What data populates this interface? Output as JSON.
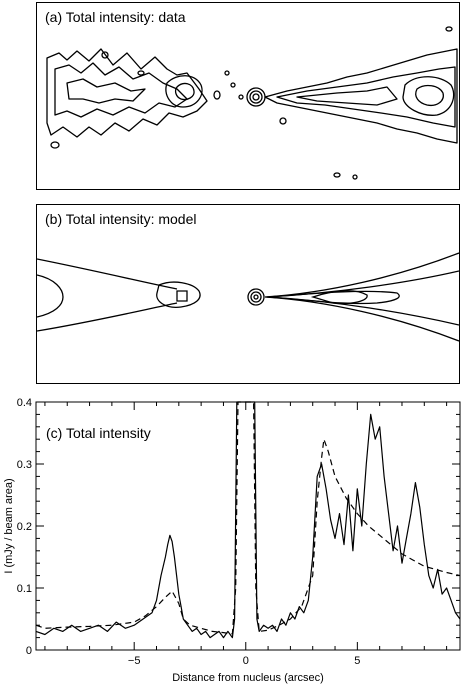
{
  "panels": {
    "a": {
      "title": "(a) Total intensity: data"
    },
    "b": {
      "title": "(b) Total intensity: model"
    }
  },
  "chart_data": {
    "type": "line",
    "title": "(c) Total intensity",
    "xlabel": "Distance from nucleus (arcsec)",
    "ylabel": "I (mJy / beam area)",
    "xlim": [
      -9.4,
      9.6
    ],
    "ylim": [
      0,
      0.4
    ],
    "xticks": [
      -5,
      0,
      5
    ],
    "xtick_labels": [
      "−5",
      "0",
      "5"
    ],
    "yticks": [
      0,
      0.1,
      0.2,
      0.3,
      0.4
    ],
    "ytick_labels": [
      "0",
      "0.1",
      "0.2",
      "0.3",
      "0.4"
    ],
    "series": [
      {
        "style": "solid",
        "x": [
          -9.4,
          -9.0,
          -8.6,
          -8.2,
          -7.8,
          -7.4,
          -7.0,
          -6.6,
          -6.2,
          -5.8,
          -5.4,
          -5.0,
          -4.6,
          -4.2,
          -4.0,
          -3.8,
          -3.6,
          -3.5,
          -3.4,
          -3.3,
          -3.2,
          -3.1,
          -3.0,
          -2.9,
          -2.8,
          -2.6,
          -2.4,
          -2.2,
          -2.0,
          -1.8,
          -1.6,
          -1.4,
          -1.2,
          -1.0,
          -0.8,
          -0.6,
          -0.5,
          -0.4,
          -0.35,
          -0.3,
          0.3,
          0.35,
          0.4,
          0.5,
          0.6,
          0.8,
          1.0,
          1.2,
          1.4,
          1.6,
          1.8,
          2.0,
          2.2,
          2.4,
          2.6,
          2.8,
          3.0,
          3.2,
          3.4,
          3.6,
          3.8,
          4.0,
          4.2,
          4.4,
          4.6,
          4.8,
          5.0,
          5.2,
          5.4,
          5.6,
          5.8,
          6.0,
          6.2,
          6.4,
          6.6,
          6.8,
          7.0,
          7.2,
          7.4,
          7.6,
          7.8,
          8.0,
          8.2,
          8.4,
          8.6,
          8.8,
          9.0,
          9.2,
          9.4,
          9.6
        ],
        "y": [
          0.03,
          0.025,
          0.035,
          0.03,
          0.04,
          0.03,
          0.035,
          0.04,
          0.03,
          0.045,
          0.035,
          0.04,
          0.05,
          0.06,
          0.08,
          0.12,
          0.15,
          0.17,
          0.185,
          0.175,
          0.15,
          0.12,
          0.09,
          0.07,
          0.05,
          0.04,
          0.03,
          0.035,
          0.025,
          0.03,
          0.02,
          0.025,
          0.03,
          0.02,
          0.03,
          0.02,
          0.05,
          0.4,
          0.4,
          0.4,
          0.4,
          0.4,
          0.4,
          0.05,
          0.03,
          0.04,
          0.035,
          0.04,
          0.03,
          0.05,
          0.04,
          0.06,
          0.05,
          0.07,
          0.06,
          0.08,
          0.15,
          0.28,
          0.3,
          0.26,
          0.21,
          0.18,
          0.22,
          0.17,
          0.25,
          0.16,
          0.26,
          0.2,
          0.3,
          0.38,
          0.34,
          0.36,
          0.28,
          0.22,
          0.16,
          0.2,
          0.14,
          0.18,
          0.22,
          0.27,
          0.23,
          0.17,
          0.12,
          0.1,
          0.13,
          0.09,
          0.1,
          0.08,
          0.06,
          0.05
        ]
      },
      {
        "style": "dashed",
        "x": [
          -9.4,
          -9.0,
          -8.0,
          -7.0,
          -6.0,
          -5.0,
          -4.5,
          -4.0,
          -3.6,
          -3.3,
          -3.0,
          -2.8,
          -2.5,
          -2.0,
          -1.5,
          -1.0,
          -0.6,
          -0.45,
          -0.35,
          0.35,
          0.45,
          0.6,
          1.0,
          1.5,
          2.0,
          2.5,
          3.0,
          3.2,
          3.4,
          3.5,
          3.7,
          4.0,
          4.5,
          5.0,
          5.5,
          6.0,
          6.5,
          7.0,
          7.5,
          8.0,
          8.5,
          9.0,
          9.6
        ],
        "y": [
          0.04,
          0.035,
          0.037,
          0.038,
          0.04,
          0.045,
          0.055,
          0.07,
          0.085,
          0.095,
          0.075,
          0.05,
          0.04,
          0.035,
          0.03,
          0.028,
          0.026,
          0.1,
          0.4,
          0.4,
          0.1,
          0.03,
          0.032,
          0.04,
          0.05,
          0.07,
          0.12,
          0.24,
          0.31,
          0.34,
          0.32,
          0.28,
          0.245,
          0.22,
          0.2,
          0.185,
          0.17,
          0.155,
          0.145,
          0.135,
          0.13,
          0.125,
          0.12
        ]
      }
    ]
  }
}
